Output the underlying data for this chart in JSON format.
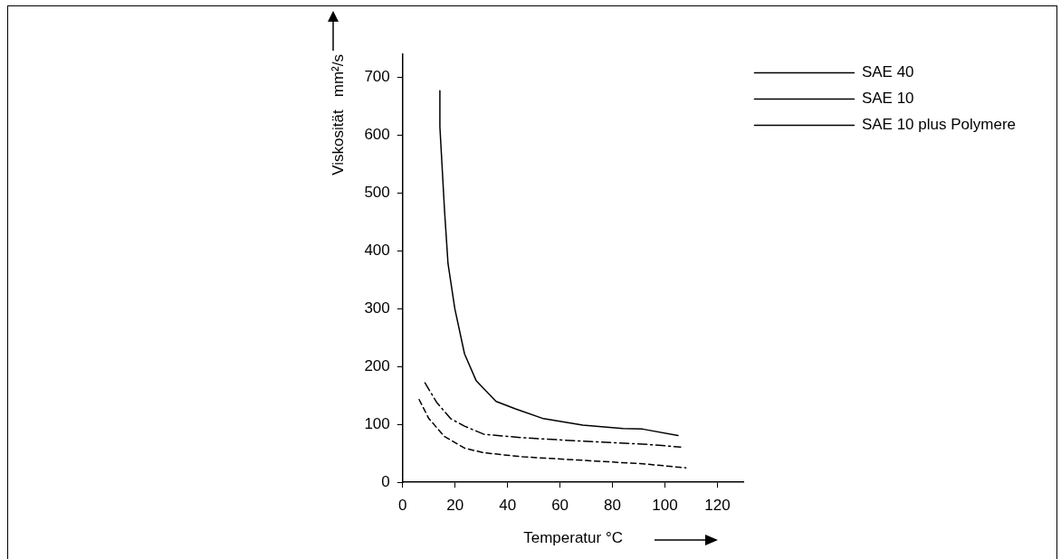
{
  "chart_data": {
    "type": "line",
    "xlabel": "Temperatur °C",
    "ylabel": "Viskosität   mm²/s",
    "xlim": [
      0,
      130
    ],
    "xticks": [
      0,
      20,
      40,
      60,
      80,
      100,
      120
    ],
    "ylim": [
      0,
      740
    ],
    "yticks": [
      0,
      100,
      200,
      300,
      400,
      500,
      600,
      700
    ],
    "grid": false,
    "legend": "right",
    "marker": "none",
    "series": [
      {
        "name": "SAE 40",
        "color": "#000000",
        "line_style": "solid",
        "x": [
          14.2,
          14.2,
          16,
          17.3,
          19.9,
          23.6,
          28,
          35.6,
          43,
          53.7,
          68.7,
          84,
          91.5,
          105
        ],
        "values": [
          677,
          615,
          468,
          378,
          300,
          222,
          176,
          140,
          127,
          110,
          99,
          93,
          92,
          81
        ]
      },
      {
        "name": "SAE 10",
        "color": "#000000",
        "line_style": "dashdot",
        "x": [
          8.5,
          13,
          18.3,
          23.6,
          31,
          46,
          68.7,
          91.5,
          106
        ],
        "values": [
          172,
          138,
          110,
          97,
          83,
          77,
          71,
          66,
          61
        ]
      },
      {
        "name": "SAE 10 plus Polymere",
        "color": "#000000",
        "line_style": "dashed",
        "x": [
          6.3,
          10,
          16,
          23.6,
          31,
          46,
          68.7,
          91.5,
          108
        ],
        "values": [
          143,
          110,
          79,
          59,
          51,
          44,
          38,
          32,
          25
        ]
      }
    ]
  }
}
